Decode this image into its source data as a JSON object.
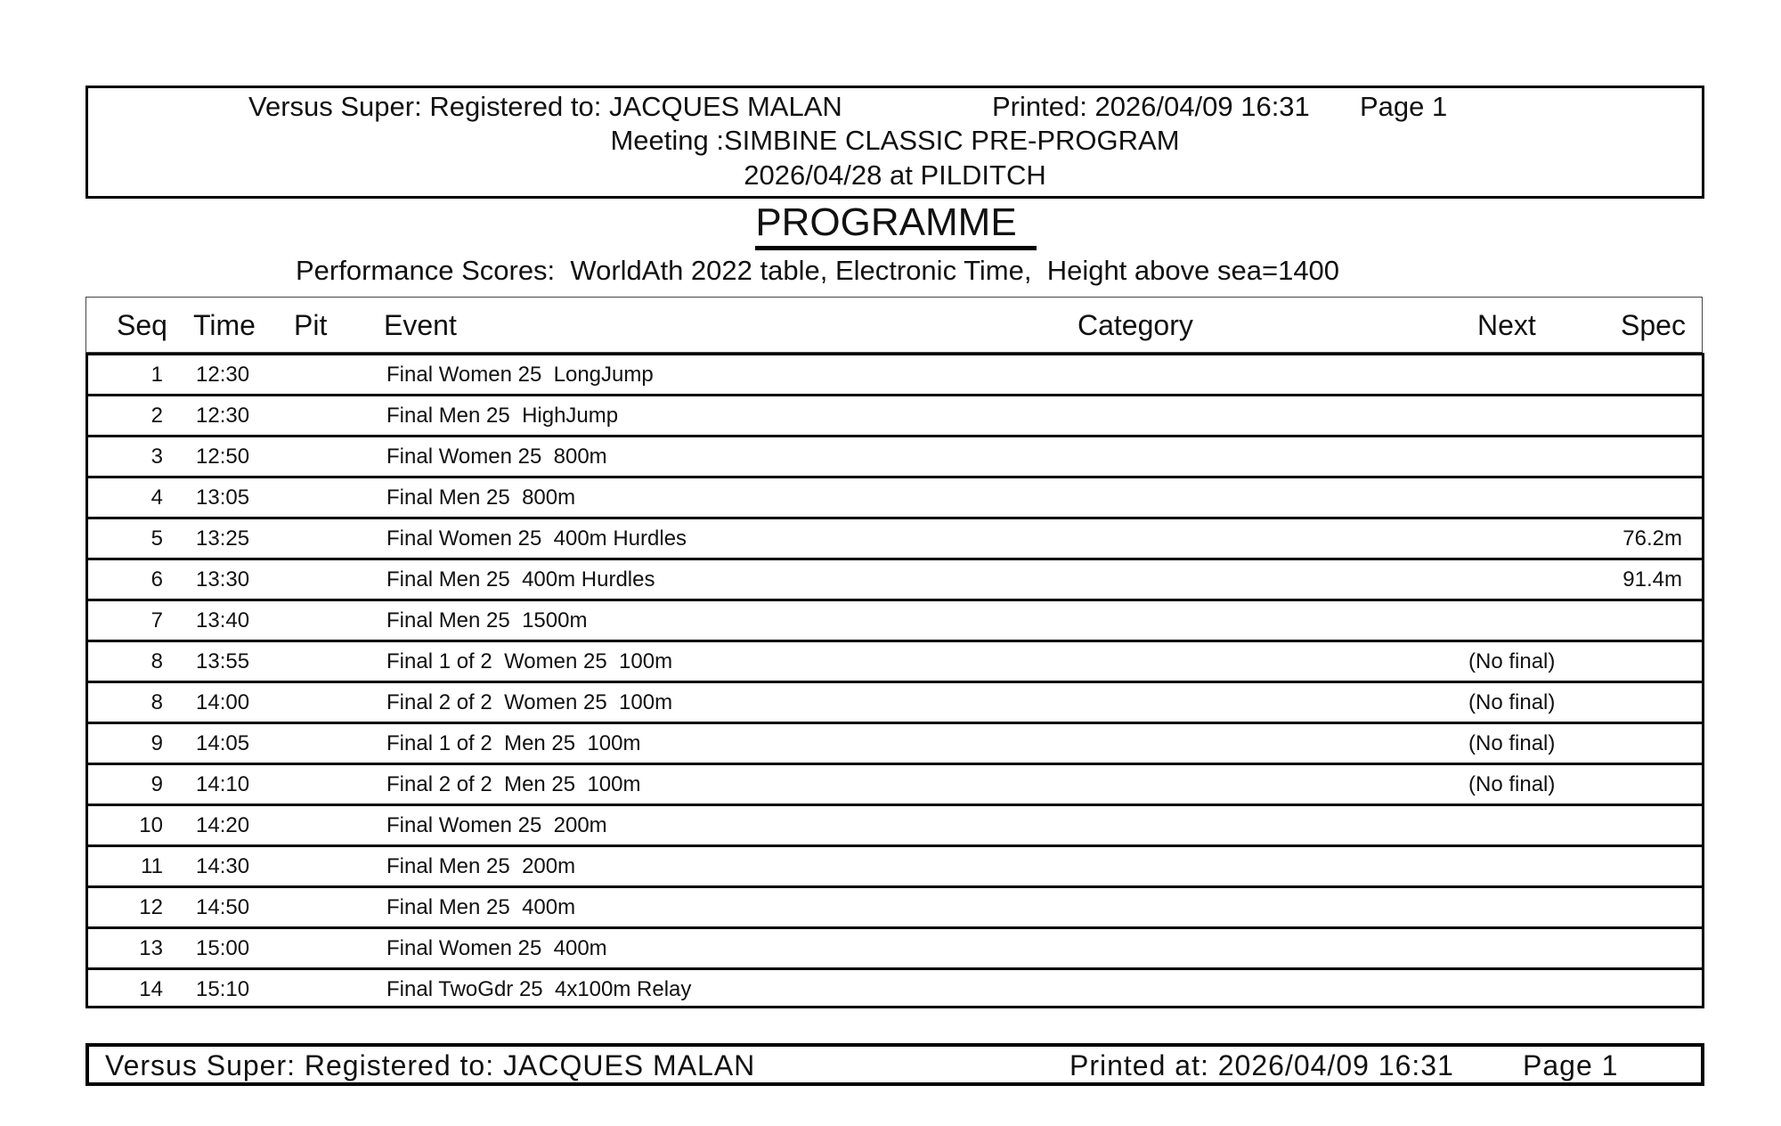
{
  "header": {
    "registered": "Versus Super: Registered to: JACQUES MALAN",
    "printed": "Printed: 2026/04/09 16:31",
    "page": "Page 1",
    "meeting": "Meeting :SIMBINE CLASSIC PRE-PROGRAM",
    "date_venue": "2026/04/28  at  PILDITCH"
  },
  "title": "PROGRAMME",
  "performance_scores": "Performance Scores:  WorldAth 2022 table, Electronic Time,  Height above sea=1400",
  "columns": {
    "seq": "Seq",
    "time": "Time",
    "pit": "Pit",
    "event": "Event",
    "category": "Category",
    "next": "Next",
    "spec": "Spec"
  },
  "rows": [
    {
      "seq": "1",
      "time": "12:30",
      "event": "Final Women 25  LongJump",
      "next": "",
      "spec": ""
    },
    {
      "seq": "2",
      "time": "12:30",
      "event": "Final Men 25  HighJump",
      "next": "",
      "spec": ""
    },
    {
      "seq": "3",
      "time": "12:50",
      "event": "Final Women 25  800m",
      "next": "",
      "spec": ""
    },
    {
      "seq": "4",
      "time": "13:05",
      "event": "Final Men 25  800m",
      "next": "",
      "spec": ""
    },
    {
      "seq": "5",
      "time": "13:25",
      "event": "Final Women 25  400m Hurdles",
      "next": "",
      "spec": "76.2m"
    },
    {
      "seq": "6",
      "time": "13:30",
      "event": "Final Men 25  400m Hurdles",
      "next": "",
      "spec": "91.4m"
    },
    {
      "seq": "7",
      "time": "13:40",
      "event": "Final Men 25  1500m",
      "next": "",
      "spec": ""
    },
    {
      "seq": "8",
      "time": "13:55",
      "event": "Final 1 of 2  Women 25  100m",
      "next": "(No final)",
      "spec": ""
    },
    {
      "seq": "8",
      "time": "14:00",
      "event": "Final 2 of 2  Women 25  100m",
      "next": "(No final)",
      "spec": ""
    },
    {
      "seq": "9",
      "time": "14:05",
      "event": "Final 1 of 2  Men 25  100m",
      "next": "(No final)",
      "spec": ""
    },
    {
      "seq": "9",
      "time": "14:10",
      "event": "Final 2 of 2  Men 25  100m",
      "next": "(No final)",
      "spec": ""
    },
    {
      "seq": "10",
      "time": "14:20",
      "event": "Final Women 25  200m",
      "next": "",
      "spec": ""
    },
    {
      "seq": "11",
      "time": "14:30",
      "event": "Final Men 25  200m",
      "next": "",
      "spec": ""
    },
    {
      "seq": "12",
      "time": "14:50",
      "event": "Final Men 25  400m",
      "next": "",
      "spec": ""
    },
    {
      "seq": "13",
      "time": "15:00",
      "event": "Final Women 25  400m",
      "next": "",
      "spec": ""
    },
    {
      "seq": "14",
      "time": "15:10",
      "event": "Final TwoGdr 25  4x100m Relay",
      "next": "",
      "spec": ""
    }
  ],
  "footer": {
    "registered": "Versus Super: Registered to: JACQUES MALAN",
    "printed": "Printed at: 2026/04/09 16:31",
    "page": "Page 1"
  }
}
